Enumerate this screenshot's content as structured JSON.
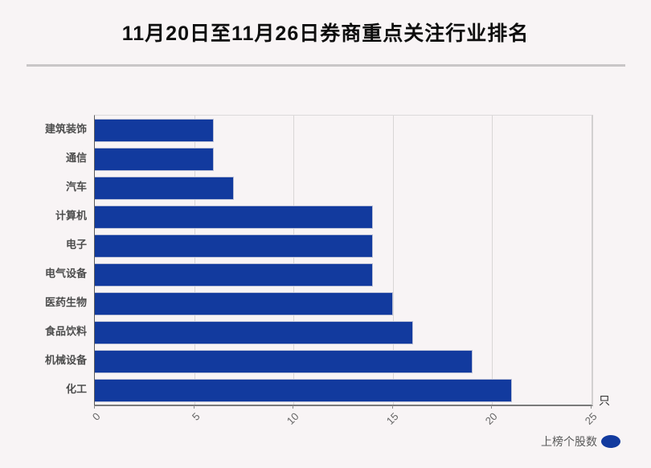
{
  "chart_data": {
    "type": "bar",
    "orientation": "horizontal",
    "title": "11月20日至11月26日券商重点关注行业排名",
    "categories": [
      "建筑装饰",
      "通信",
      "汽车",
      "计算机",
      "电子",
      "电气设备",
      "医药生物",
      "食品饮料",
      "机械设备",
      "化工"
    ],
    "series": [
      {
        "name": "上榜个股数",
        "values": [
          6,
          6,
          7,
          14,
          14,
          14,
          15,
          16,
          19,
          21
        ]
      }
    ],
    "unit_label": "只",
    "legend_label": "上榜个股数",
    "legend_position": "bottom-right",
    "xlim": [
      0,
      25
    ],
    "xticks": [
      0,
      5,
      10,
      15,
      20,
      25
    ],
    "grid": "vertical",
    "colors": {
      "bar": "#123a9e",
      "bar_border": "#b9bfd6",
      "background": "#f8f4f5",
      "grid": "#d9d6d6",
      "title": "#0e0e0e",
      "category_label": "#4d4d4d",
      "tick_label": "#666666",
      "legend_text": "#595959"
    }
  }
}
